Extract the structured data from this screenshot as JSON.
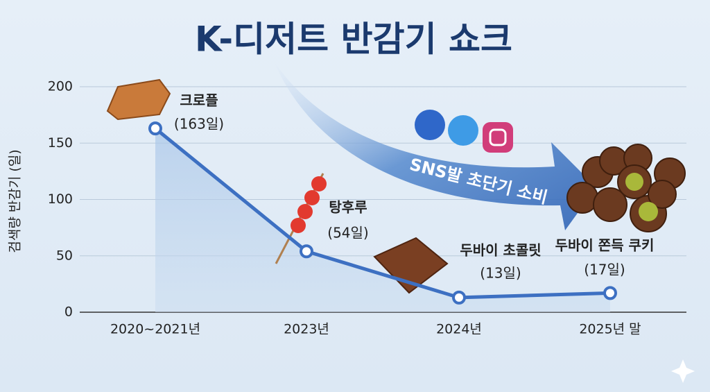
{
  "chart_data": {
    "type": "line",
    "title": "K-디저트 반감기 쇼크",
    "y_label": "검색량 반감기 (일)",
    "categories": [
      "2020~2021년",
      "2023년",
      "2024년",
      "2025년 말"
    ],
    "values": [
      163,
      54,
      13,
      17
    ],
    "value_labels": [
      "(163일)",
      "(54일)",
      "(13일)",
      "(17일)"
    ],
    "point_labels": [
      "크로플",
      "탕후루",
      "두바이 초콜릿",
      "두바이 쫀득 쿠키"
    ],
    "arrow_label": "SNS발 초단기 소비",
    "color": "#3d70c2",
    "ylim": [
      0,
      200
    ],
    "yticks": [
      0,
      50,
      100,
      150,
      200
    ],
    "grid": true
  }
}
